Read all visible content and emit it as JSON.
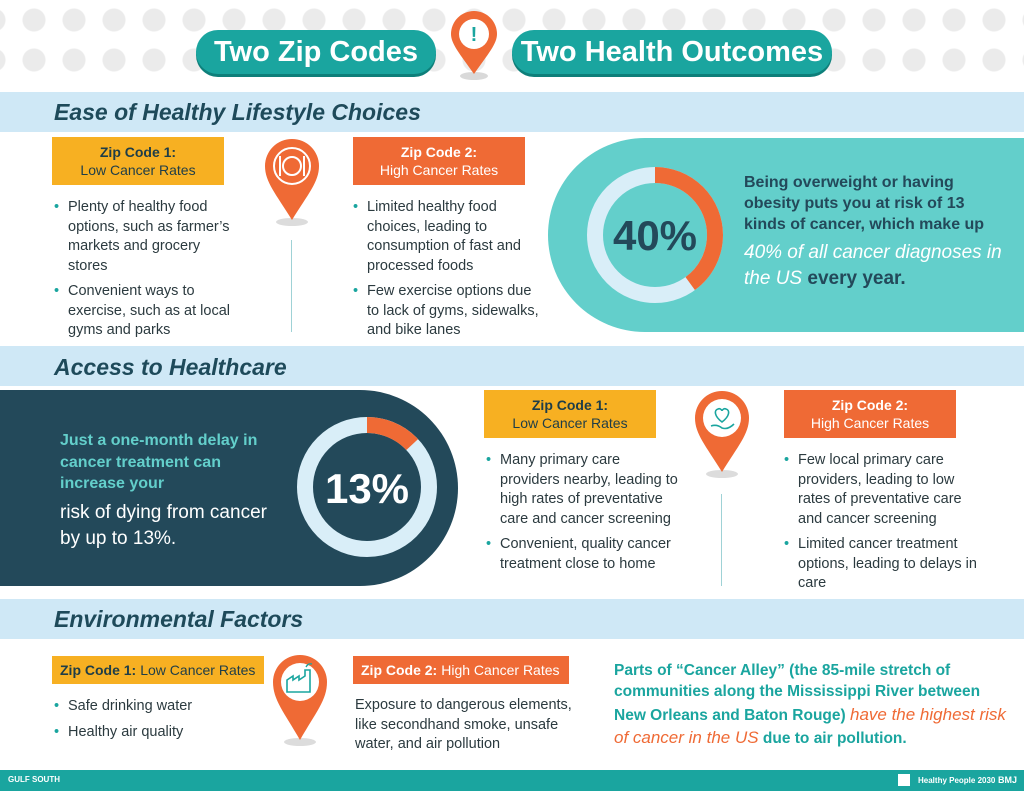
{
  "header": {
    "title_left": "Two Zip Codes",
    "title_right": "Two Health Outcomes",
    "alert_symbol": "!"
  },
  "sections": {
    "lifestyle": {
      "title": "Ease of Healthy Lifestyle Choices",
      "zip1": {
        "label": "Zip Code 1:",
        "sub": "Low Cancer Rates"
      },
      "zip2": {
        "label": "Zip Code 2:",
        "sub": "High Cancer Rates"
      },
      "zip1_items": [
        "Plenty of healthy food options, such as farmer’s markets and grocery stores",
        "Convenient ways to exercise, such as at local gyms and parks"
      ],
      "zip2_items": [
        "Limited healthy food choices, leading to consumption of fast and processed foods",
        "Few exercise options due to lack of gyms, sidewalks, and bike lanes"
      ],
      "icon": "plate-fork-knife-icon",
      "stat": {
        "value": "40%",
        "fraction": 0.4,
        "line1": "Being overweight or having obesity puts you at risk of 13 kinds of cancer, which make up",
        "line2a": "40% of all cancer diagnoses in the US",
        "line2b": "every year."
      }
    },
    "healthcare": {
      "title": "Access to Healthcare",
      "stat": {
        "value": "13%",
        "fraction": 0.13,
        "line1": "Just a one-month delay in cancer treatment can increase your",
        "line2": "risk of dying from cancer by up to 13%."
      },
      "zip1": {
        "label": "Zip Code 1:",
        "sub": "Low Cancer Rates"
      },
      "zip2": {
        "label": "Zip Code 2:",
        "sub": "High Cancer Rates"
      },
      "zip1_items": [
        "Many primary care providers nearby, leading to high rates of preventative care and cancer screening",
        "Convenient, quality cancer treatment close to home"
      ],
      "zip2_items": [
        "Few local primary care providers, leading to low rates of preventative care and cancer screening",
        "Limited cancer treatment options, leading to delays in care"
      ],
      "icon": "heart-hand-icon"
    },
    "environment": {
      "title": "Environmental Factors",
      "zip1": {
        "label": "Zip Code 1:",
        "sub": "Low Cancer Rates"
      },
      "zip2": {
        "label": "Zip Code 2:",
        "sub": "High Cancer Rates"
      },
      "zip1_items": [
        "Safe drinking water",
        "Healthy air quality"
      ],
      "zip2_text": "Exposure to dangerous elements, like secondhand smoke, unsafe water, and air pollution",
      "icon": "factory-icon",
      "stat": {
        "part1": "Parts of “Cancer Alley” (the 85-mile stretch of communities along the Mississippi River between New Orleans and Baton Rouge)",
        "part2": "have the highest risk of cancer in the US",
        "part3": "due to air pollution."
      }
    }
  },
  "footer": {
    "left_logo": "GULF SOUTH",
    "right_logos": [
      "Healthy People 2030",
      "BMJ"
    ]
  },
  "colors": {
    "teal": "#1aa59f",
    "orange": "#ef6a35",
    "yellow": "#f7b022",
    "navy": "#23495a",
    "light_blue": "#cfe8f6"
  }
}
